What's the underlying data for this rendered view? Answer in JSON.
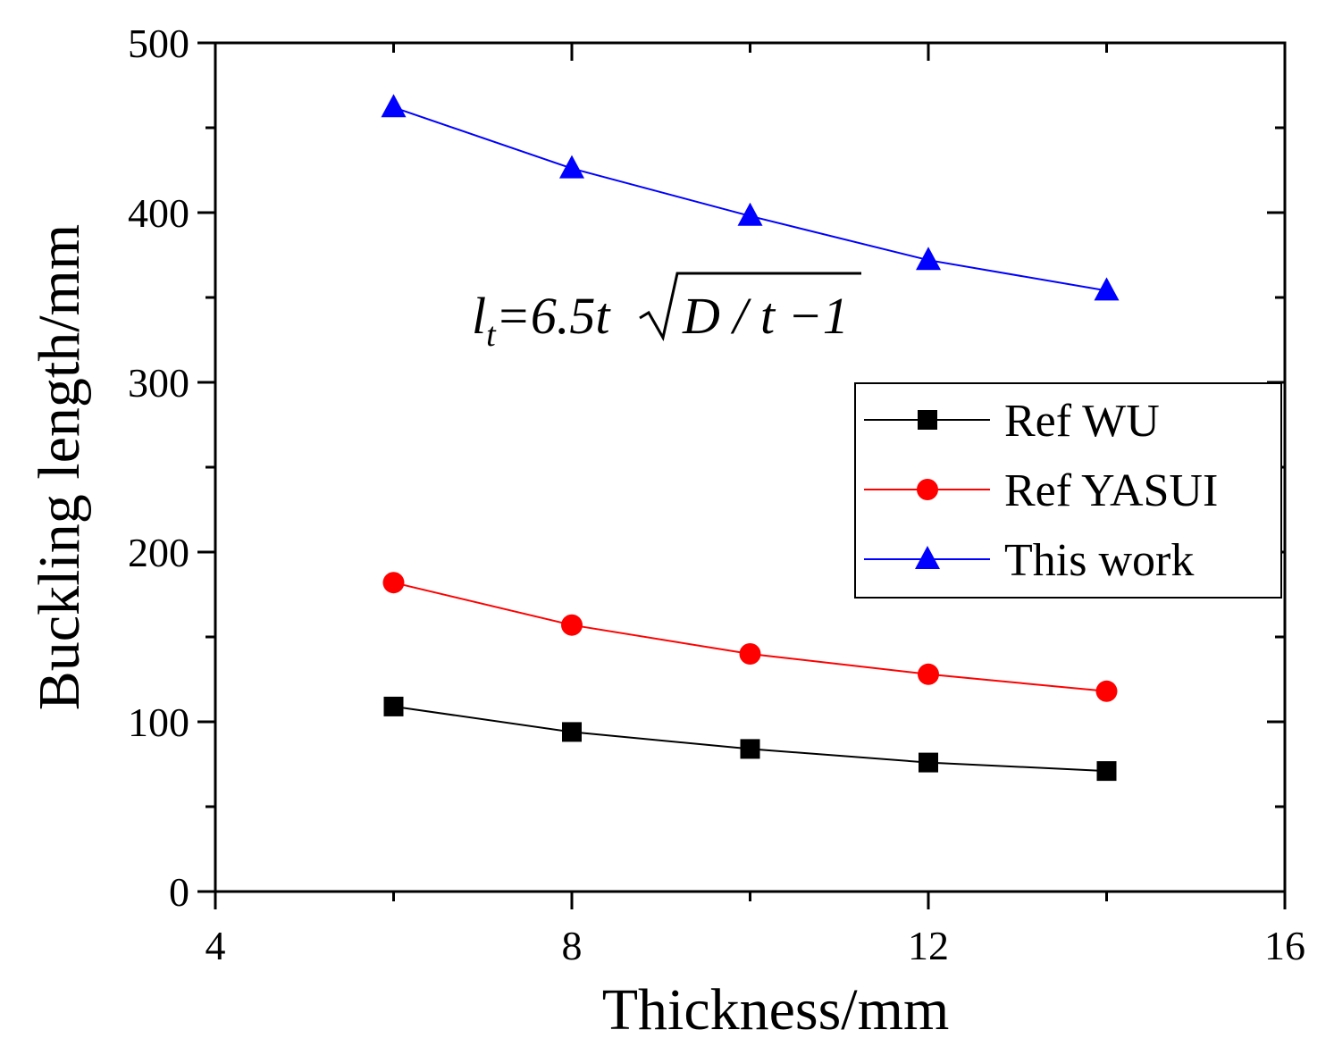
{
  "chart_data": {
    "type": "line",
    "title": "",
    "xlabel": "Thickness/mm",
    "ylabel": "Buckling length/mm",
    "xlim": [
      4,
      16
    ],
    "ylim": [
      0,
      500
    ],
    "xticks": [
      4,
      8,
      12,
      16
    ],
    "yticks": [
      0,
      100,
      200,
      300,
      400,
      500
    ],
    "x": [
      6,
      8,
      10,
      12,
      14
    ],
    "series": [
      {
        "name": "Ref WU",
        "marker": "square",
        "color": "#000000",
        "values": [
          109,
          94,
          84,
          76,
          71
        ]
      },
      {
        "name": "Ref YASUI",
        "marker": "circle",
        "color": "#ff0000",
        "values": [
          182,
          157,
          140,
          128,
          118
        ]
      },
      {
        "name": "This work",
        "marker": "triangle",
        "color": "#0000ff",
        "values": [
          462,
          426,
          398,
          372,
          354
        ]
      }
    ],
    "legend_position": "right",
    "annotation": {
      "lhs": "l",
      "lhs_subscript": "t",
      "equals_coef": "=6.5t",
      "radicand": "D / t −1"
    }
  }
}
